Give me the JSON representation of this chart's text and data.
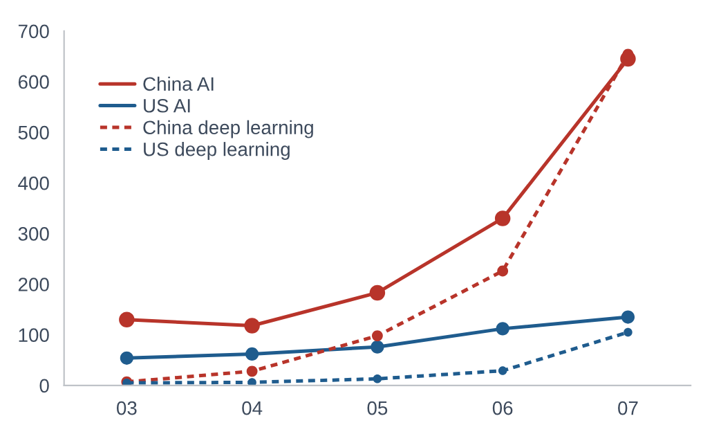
{
  "chart_data": {
    "type": "line",
    "categories": [
      "03",
      "04",
      "05",
      "06",
      "07"
    ],
    "series": [
      {
        "name": "China AI",
        "color": "#b8342a",
        "line_style": "solid",
        "values": [
          130,
          118,
          183,
          330,
          645
        ]
      },
      {
        "name": "US AI",
        "color": "#1f5c8e",
        "line_style": "solid",
        "values": [
          54,
          62,
          76,
          112,
          135
        ]
      },
      {
        "name": "China deep learning",
        "color": "#b8342a",
        "line_style": "dashed",
        "values": [
          7,
          28,
          98,
          226,
          654
        ]
      },
      {
        "name": "US deep learning",
        "color": "#1f5c8e",
        "line_style": "dashed",
        "values": [
          5,
          6,
          13,
          29,
          105
        ]
      }
    ],
    "ylim": [
      0,
      700
    ],
    "yticks": [
      0,
      100,
      200,
      300,
      400,
      500,
      600,
      700
    ],
    "marker": "circle",
    "grid": false,
    "legend": "top left"
  }
}
